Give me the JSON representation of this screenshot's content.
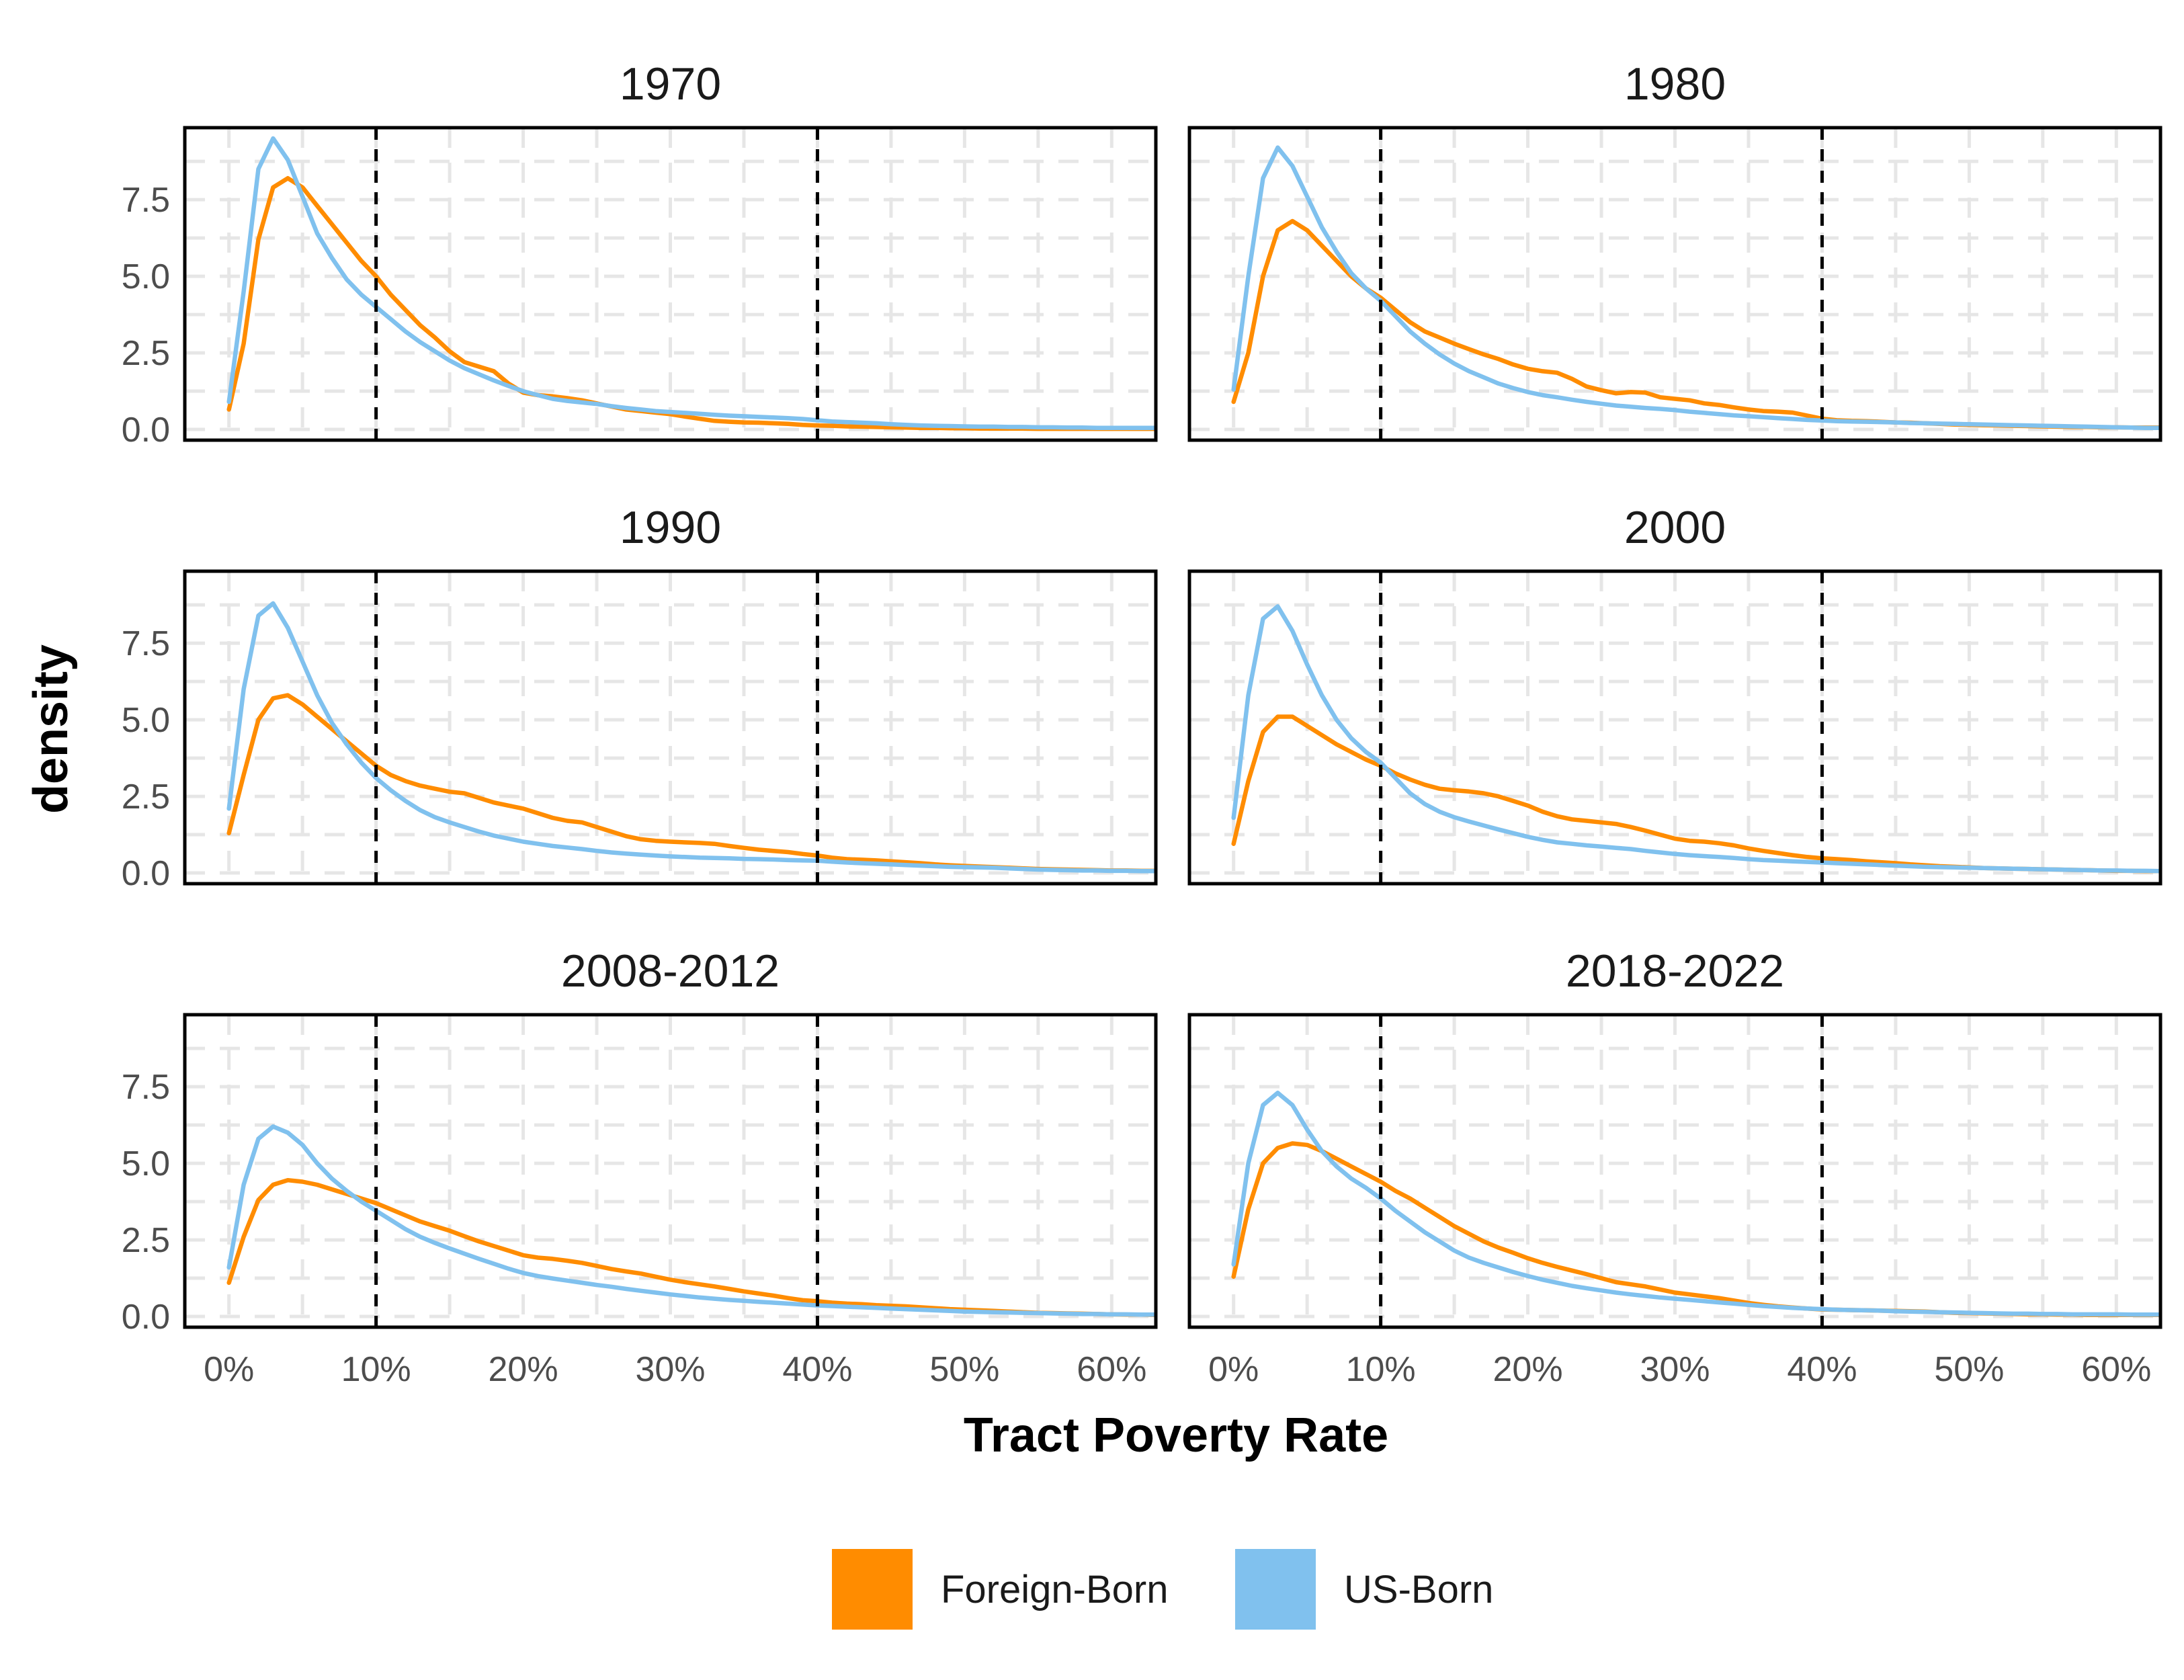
{
  "chart_data": {
    "type": "line",
    "xlabel": "Tract Poverty Rate",
    "ylabel": "density",
    "xlim": [
      -0.03,
      0.63
    ],
    "ylim": [
      -0.35,
      9.85
    ],
    "x_ticks": [
      0,
      0.1,
      0.2,
      0.3,
      0.4,
      0.5,
      0.6
    ],
    "x_tick_labels": [
      "0%",
      "10%",
      "20%",
      "30%",
      "40%",
      "50%",
      "60%"
    ],
    "y_ticks": [
      0,
      2.5,
      5,
      7.5
    ],
    "y_tick_labels": [
      "0.0",
      "2.5",
      "5.0",
      "7.5"
    ],
    "reference_lines_x": [
      0.1,
      0.4
    ],
    "grid": true,
    "legend": {
      "position": "bottom",
      "entries": [
        {
          "label": "Foreign-Born",
          "color": "#FF8C00"
        },
        {
          "label": "US-Born",
          "color": "#80C1EE"
        }
      ]
    },
    "x": [
      0,
      0.01,
      0.02,
      0.03,
      0.04,
      0.05,
      0.06,
      0.07,
      0.08,
      0.09,
      0.1,
      0.11,
      0.12,
      0.13,
      0.14,
      0.15,
      0.16,
      0.17,
      0.18,
      0.19,
      0.2,
      0.21,
      0.22,
      0.23,
      0.24,
      0.25,
      0.26,
      0.27,
      0.28,
      0.29,
      0.3,
      0.31,
      0.32,
      0.33,
      0.34,
      0.35,
      0.36,
      0.37,
      0.38,
      0.39,
      0.4,
      0.41,
      0.42,
      0.43,
      0.44,
      0.45,
      0.46,
      0.47,
      0.48,
      0.49,
      0.5,
      0.51,
      0.52,
      0.53,
      0.54,
      0.55,
      0.56,
      0.57,
      0.58,
      0.59,
      0.6,
      0.61,
      0.62,
      0.63
    ],
    "panels": [
      {
        "title": "1970",
        "series": [
          {
            "name": "Foreign-Born",
            "color": "#FF8C00",
            "values": [
              0.65,
              2.8,
              6.2,
              7.9,
              8.2,
              7.9,
              7.3,
              6.7,
              6.1,
              5.5,
              5.0,
              4.4,
              3.9,
              3.4,
              3.0,
              2.55,
              2.2,
              2.05,
              1.9,
              1.5,
              1.2,
              1.12,
              1.08,
              1.02,
              0.95,
              0.85,
              0.75,
              0.65,
              0.6,
              0.55,
              0.5,
              0.42,
              0.35,
              0.28,
              0.25,
              0.23,
              0.22,
              0.2,
              0.18,
              0.15,
              0.13,
              0.12,
              0.1,
              0.09,
              0.08,
              0.07,
              0.06,
              0.05,
              0.05,
              0.04,
              0.04,
              0.03,
              0.03,
              0.03,
              0.03,
              0.02,
              0.02,
              0.02,
              0.02,
              0.02,
              0.02,
              0.02,
              0.02,
              0.02
            ]
          },
          {
            "name": "US-Born",
            "color": "#80C1EE",
            "values": [
              0.9,
              4.5,
              8.5,
              9.5,
              8.8,
              7.6,
              6.4,
              5.6,
              4.9,
              4.4,
              4.0,
              3.6,
              3.2,
              2.85,
              2.55,
              2.25,
              2.0,
              1.8,
              1.6,
              1.42,
              1.25,
              1.12,
              1.0,
              0.93,
              0.88,
              0.83,
              0.76,
              0.7,
              0.65,
              0.6,
              0.57,
              0.54,
              0.51,
              0.48,
              0.45,
              0.43,
              0.41,
              0.39,
              0.37,
              0.34,
              0.3,
              0.26,
              0.24,
              0.22,
              0.2,
              0.17,
              0.15,
              0.13,
              0.12,
              0.11,
              0.1,
              0.09,
              0.09,
              0.08,
              0.08,
              0.07,
              0.07,
              0.06,
              0.06,
              0.05,
              0.05,
              0.05,
              0.05,
              0.05
            ]
          }
        ]
      },
      {
        "title": "1980",
        "series": [
          {
            "name": "Foreign-Born",
            "color": "#FF8C00",
            "values": [
              0.9,
              2.5,
              5.0,
              6.5,
              6.8,
              6.5,
              6.0,
              5.5,
              5.0,
              4.6,
              4.3,
              3.9,
              3.5,
              3.2,
              3.0,
              2.8,
              2.62,
              2.45,
              2.3,
              2.12,
              1.98,
              1.9,
              1.85,
              1.65,
              1.4,
              1.28,
              1.18,
              1.22,
              1.2,
              1.05,
              1.0,
              0.95,
              0.85,
              0.8,
              0.72,
              0.65,
              0.6,
              0.58,
              0.55,
              0.45,
              0.35,
              0.3,
              0.28,
              0.27,
              0.25,
              0.23,
              0.22,
              0.2,
              0.18,
              0.16,
              0.15,
              0.14,
              0.13,
              0.12,
              0.11,
              0.1,
              0.09,
              0.08,
              0.08,
              0.07,
              0.07,
              0.06,
              0.06,
              0.06
            ]
          },
          {
            "name": "US-Born",
            "color": "#80C1EE",
            "values": [
              1.3,
              5.0,
              8.2,
              9.2,
              8.6,
              7.6,
              6.6,
              5.8,
              5.1,
              4.6,
              4.2,
              3.7,
              3.2,
              2.8,
              2.45,
              2.15,
              1.9,
              1.7,
              1.5,
              1.35,
              1.22,
              1.12,
              1.05,
              0.97,
              0.9,
              0.84,
              0.78,
              0.74,
              0.7,
              0.67,
              0.63,
              0.58,
              0.54,
              0.5,
              0.46,
              0.43,
              0.4,
              0.37,
              0.34,
              0.31,
              0.29,
              0.27,
              0.26,
              0.25,
              0.24,
              0.23,
              0.21,
              0.2,
              0.19,
              0.18,
              0.17,
              0.16,
              0.15,
              0.14,
              0.13,
              0.12,
              0.11,
              0.1,
              0.09,
              0.08,
              0.07,
              0.06,
              0.05,
              0.05
            ]
          }
        ]
      },
      {
        "title": "1990",
        "series": [
          {
            "name": "Foreign-Born",
            "color": "#FF8C00",
            "values": [
              1.3,
              3.2,
              5.0,
              5.7,
              5.8,
              5.5,
              5.1,
              4.7,
              4.3,
              3.9,
              3.5,
              3.2,
              3.0,
              2.85,
              2.75,
              2.65,
              2.6,
              2.45,
              2.3,
              2.2,
              2.1,
              1.95,
              1.8,
              1.7,
              1.65,
              1.5,
              1.35,
              1.2,
              1.1,
              1.05,
              1.02,
              1.0,
              0.98,
              0.95,
              0.88,
              0.82,
              0.76,
              0.72,
              0.68,
              0.62,
              0.57,
              0.5,
              0.45,
              0.43,
              0.41,
              0.38,
              0.35,
              0.32,
              0.28,
              0.25,
              0.23,
              0.21,
              0.19,
              0.17,
              0.15,
              0.13,
              0.12,
              0.11,
              0.1,
              0.09,
              0.08,
              0.08,
              0.07,
              0.07
            ]
          },
          {
            "name": "US-Born",
            "color": "#80C1EE",
            "values": [
              2.1,
              6.0,
              8.4,
              8.8,
              8.0,
              6.9,
              5.8,
              4.9,
              4.2,
              3.6,
              3.1,
              2.7,
              2.35,
              2.05,
              1.82,
              1.65,
              1.5,
              1.35,
              1.22,
              1.12,
              1.02,
              0.95,
              0.88,
              0.83,
              0.78,
              0.72,
              0.67,
              0.63,
              0.6,
              0.57,
              0.54,
              0.52,
              0.5,
              0.49,
              0.48,
              0.46,
              0.45,
              0.44,
              0.42,
              0.41,
              0.4,
              0.37,
              0.34,
              0.32,
              0.3,
              0.28,
              0.26,
              0.24,
              0.22,
              0.2,
              0.19,
              0.18,
              0.17,
              0.15,
              0.13,
              0.11,
              0.1,
              0.09,
              0.08,
              0.08,
              0.07,
              0.07,
              0.06,
              0.06
            ]
          }
        ]
      },
      {
        "title": "2000",
        "series": [
          {
            "name": "Foreign-Born",
            "color": "#FF8C00",
            "values": [
              0.95,
              3.0,
              4.6,
              5.1,
              5.1,
              4.8,
              4.5,
              4.2,
              3.95,
              3.7,
              3.5,
              3.25,
              3.05,
              2.88,
              2.75,
              2.7,
              2.66,
              2.6,
              2.5,
              2.35,
              2.2,
              2.0,
              1.85,
              1.75,
              1.7,
              1.65,
              1.6,
              1.5,
              1.38,
              1.25,
              1.12,
              1.05,
              1.02,
              0.97,
              0.9,
              0.8,
              0.72,
              0.65,
              0.58,
              0.52,
              0.48,
              0.45,
              0.42,
              0.38,
              0.35,
              0.32,
              0.28,
              0.25,
              0.22,
              0.2,
              0.18,
              0.16,
              0.15,
              0.14,
              0.13,
              0.12,
              0.11,
              0.1,
              0.09,
              0.08,
              0.07,
              0.07,
              0.06,
              0.06
            ]
          },
          {
            "name": "US-Born",
            "color": "#80C1EE",
            "values": [
              1.8,
              5.8,
              8.3,
              8.7,
              7.9,
              6.8,
              5.8,
              5.0,
              4.4,
              3.95,
              3.6,
              3.1,
              2.6,
              2.25,
              2.0,
              1.82,
              1.68,
              1.55,
              1.42,
              1.3,
              1.18,
              1.08,
              1.0,
              0.95,
              0.9,
              0.86,
              0.82,
              0.78,
              0.72,
              0.67,
              0.62,
              0.58,
              0.55,
              0.52,
              0.49,
              0.45,
              0.42,
              0.4,
              0.38,
              0.36,
              0.34,
              0.32,
              0.3,
              0.28,
              0.26,
              0.24,
              0.22,
              0.2,
              0.19,
              0.18,
              0.17,
              0.16,
              0.15,
              0.14,
              0.13,
              0.12,
              0.11,
              0.1,
              0.09,
              0.08,
              0.08,
              0.07,
              0.07,
              0.06
            ]
          }
        ]
      },
      {
        "title": "2008-2012",
        "series": [
          {
            "name": "Foreign-Born",
            "color": "#FF8C00",
            "values": [
              1.1,
              2.6,
              3.8,
              4.3,
              4.45,
              4.4,
              4.3,
              4.15,
              4.0,
              3.85,
              3.7,
              3.5,
              3.3,
              3.1,
              2.95,
              2.8,
              2.62,
              2.45,
              2.3,
              2.15,
              2.0,
              1.92,
              1.88,
              1.82,
              1.75,
              1.65,
              1.55,
              1.47,
              1.4,
              1.3,
              1.2,
              1.12,
              1.05,
              0.98,
              0.9,
              0.82,
              0.75,
              0.68,
              0.6,
              0.53,
              0.5,
              0.45,
              0.42,
              0.4,
              0.37,
              0.35,
              0.33,
              0.3,
              0.27,
              0.24,
              0.22,
              0.2,
              0.18,
              0.16,
              0.14,
              0.12,
              0.11,
              0.1,
              0.09,
              0.08,
              0.07,
              0.06,
              0.06,
              0.05
            ]
          },
          {
            "name": "US-Born",
            "color": "#80C1EE",
            "values": [
              1.6,
              4.3,
              5.8,
              6.2,
              6.0,
              5.6,
              5.0,
              4.5,
              4.1,
              3.75,
              3.45,
              3.15,
              2.85,
              2.6,
              2.4,
              2.22,
              2.05,
              1.88,
              1.72,
              1.56,
              1.42,
              1.32,
              1.24,
              1.17,
              1.1,
              1.03,
              0.97,
              0.9,
              0.84,
              0.78,
              0.72,
              0.67,
              0.62,
              0.58,
              0.54,
              0.51,
              0.48,
              0.45,
              0.42,
              0.39,
              0.36,
              0.34,
              0.32,
              0.3,
              0.28,
              0.26,
              0.24,
              0.22,
              0.2,
              0.18,
              0.16,
              0.15,
              0.14,
              0.13,
              0.12,
              0.11,
              0.1,
              0.09,
              0.08,
              0.08,
              0.07,
              0.07,
              0.06,
              0.06
            ]
          }
        ]
      },
      {
        "title": "2018-2022",
        "series": [
          {
            "name": "Foreign-Born",
            "color": "#FF8C00",
            "values": [
              1.3,
              3.5,
              5.0,
              5.5,
              5.65,
              5.6,
              5.4,
              5.15,
              4.9,
              4.65,
              4.4,
              4.1,
              3.85,
              3.55,
              3.25,
              2.95,
              2.7,
              2.45,
              2.25,
              2.08,
              1.9,
              1.75,
              1.62,
              1.5,
              1.38,
              1.25,
              1.12,
              1.05,
              0.98,
              0.88,
              0.78,
              0.72,
              0.66,
              0.6,
              0.52,
              0.44,
              0.38,
              0.33,
              0.29,
              0.26,
              0.23,
              0.22,
              0.21,
              0.2,
              0.19,
              0.18,
              0.17,
              0.16,
              0.14,
              0.12,
              0.11,
              0.1,
              0.09,
              0.08,
              0.07,
              0.07,
              0.06,
              0.06,
              0.05,
              0.05,
              0.05,
              0.05,
              0.05,
              0.05
            ]
          },
          {
            "name": "US-Born",
            "color": "#80C1EE",
            "values": [
              1.7,
              5.0,
              6.9,
              7.3,
              6.9,
              6.1,
              5.4,
              4.9,
              4.5,
              4.2,
              3.85,
              3.45,
              3.1,
              2.75,
              2.45,
              2.15,
              1.92,
              1.75,
              1.6,
              1.45,
              1.32,
              1.2,
              1.1,
              1.0,
              0.92,
              0.85,
              0.78,
              0.72,
              0.67,
              0.62,
              0.58,
              0.54,
              0.5,
              0.46,
              0.42,
              0.38,
              0.34,
              0.31,
              0.28,
              0.26,
              0.24,
              0.22,
              0.21,
              0.2,
              0.19,
              0.17,
              0.16,
              0.15,
              0.14,
              0.13,
              0.12,
              0.11,
              0.1,
              0.09,
              0.09,
              0.08,
              0.08,
              0.07,
              0.07,
              0.07,
              0.07,
              0.06,
              0.06,
              0.06
            ]
          }
        ]
      }
    ]
  }
}
